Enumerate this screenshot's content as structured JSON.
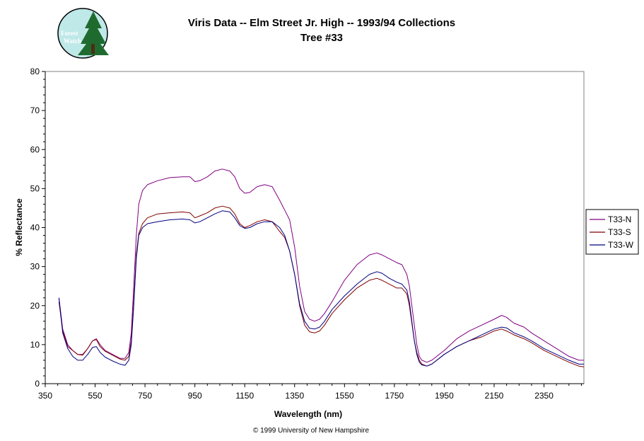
{
  "logo": {
    "line1": "Forest",
    "line2": "Watch"
  },
  "credit": "© 1999 University of New Hampshire",
  "colors": {
    "T33-N": "#800080",
    "T33-S": "#800000",
    "T33-W": "#000080",
    "axis": "#000000",
    "logo_bg": "#bfe8e8",
    "logo_tree": "#1f6b2f"
  },
  "chart_data": {
    "type": "line",
    "title": "Viris Data -- Elm Street Jr. High -- 1993/94 Collections",
    "subtitle": "Tree #33",
    "xlabel": "Wavelength (nm)",
    "ylabel": "% Reflectance",
    "xlim": [
      350,
      2510
    ],
    "ylim": [
      0,
      80
    ],
    "xticks": [
      350,
      550,
      750,
      950,
      1150,
      1350,
      1550,
      1750,
      1950,
      2150,
      2350
    ],
    "yticks": [
      0,
      10,
      20,
      30,
      40,
      50,
      60,
      70,
      80
    ],
    "grid": false,
    "legend": "right",
    "series": [
      {
        "name": "T33-N",
        "x": [
          405,
          420,
          440,
          460,
          480,
          500,
          520,
          540,
          555,
          570,
          590,
          620,
          650,
          670,
          685,
          695,
          705,
          715,
          725,
          740,
          760,
          800,
          850,
          900,
          930,
          950,
          970,
          1000,
          1030,
          1060,
          1090,
          1110,
          1130,
          1150,
          1170,
          1200,
          1230,
          1260,
          1290,
          1310,
          1330,
          1350,
          1370,
          1390,
          1410,
          1430,
          1450,
          1470,
          1500,
          1550,
          1600,
          1650,
          1680,
          1700,
          1730,
          1760,
          1780,
          1800,
          1810,
          1820,
          1830,
          1840,
          1850,
          1860,
          1880,
          1900,
          1950,
          2000,
          2050,
          2100,
          2150,
          2180,
          2200,
          2230,
          2270,
          2300,
          2350,
          2400,
          2450,
          2490,
          2510
        ],
        "y": [
          22,
          14,
          10,
          8.5,
          7.5,
          7.5,
          9,
          11,
          11.5,
          10,
          8.5,
          7.5,
          6.5,
          6.5,
          8,
          13,
          25,
          38,
          46,
          49.5,
          51,
          52,
          52.8,
          53,
          53,
          51.8,
          52,
          53,
          54.5,
          55,
          54.5,
          53,
          50,
          48.8,
          49,
          50.5,
          51,
          50.5,
          47,
          44.5,
          42,
          35,
          25,
          18.5,
          16.5,
          16,
          16.5,
          18,
          21,
          26.5,
          30.5,
          33,
          33.5,
          33,
          32,
          31,
          30.5,
          28,
          25,
          20,
          15,
          10,
          7,
          6,
          5.5,
          6,
          8.5,
          11.5,
          13.5,
          15,
          16.5,
          17.5,
          17,
          15.5,
          14.5,
          13,
          11,
          9,
          7,
          6,
          6
        ]
      },
      {
        "name": "T33-S",
        "x": [
          405,
          420,
          440,
          460,
          480,
          500,
          520,
          540,
          555,
          570,
          590,
          620,
          650,
          670,
          685,
          695,
          705,
          715,
          725,
          740,
          760,
          800,
          850,
          900,
          930,
          950,
          970,
          1000,
          1030,
          1060,
          1090,
          1110,
          1130,
          1150,
          1170,
          1200,
          1230,
          1260,
          1290,
          1310,
          1330,
          1350,
          1370,
          1390,
          1410,
          1430,
          1450,
          1470,
          1500,
          1550,
          1600,
          1650,
          1680,
          1700,
          1730,
          1760,
          1780,
          1800,
          1810,
          1820,
          1830,
          1840,
          1850,
          1860,
          1880,
          1900,
          1950,
          2000,
          2050,
          2100,
          2150,
          2180,
          2200,
          2230,
          2270,
          2300,
          2350,
          2400,
          2450,
          2490,
          2510
        ],
        "y": [
          21,
          13.5,
          9.5,
          8.5,
          7.5,
          7.3,
          9,
          11,
          11.3,
          9.5,
          8.3,
          7.3,
          6.3,
          6,
          7,
          11,
          21,
          33,
          38.5,
          41,
          42.5,
          43.5,
          43.8,
          44,
          43.8,
          42.5,
          43,
          43.8,
          45,
          45.5,
          45,
          43.5,
          41,
          40,
          40.5,
          41.5,
          42,
          41.5,
          39,
          37.5,
          34,
          28,
          20,
          15,
          13.3,
          13,
          13.5,
          15,
          18,
          21.5,
          24.5,
          26.5,
          27,
          26.5,
          25.5,
          24.5,
          24.5,
          23,
          20,
          15.5,
          11,
          8,
          6,
          5,
          4.5,
          5,
          7.5,
          9.5,
          11,
          12,
          13.5,
          14,
          13.5,
          12.5,
          11.5,
          10.5,
          8.5,
          7,
          5.5,
          4.5,
          4.3
        ]
      },
      {
        "name": "T33-W",
        "x": [
          405,
          420,
          440,
          460,
          480,
          500,
          520,
          540,
          555,
          570,
          590,
          620,
          650,
          670,
          685,
          695,
          705,
          715,
          725,
          740,
          760,
          800,
          850,
          900,
          930,
          950,
          970,
          1000,
          1030,
          1060,
          1090,
          1110,
          1130,
          1150,
          1170,
          1200,
          1230,
          1260,
          1290,
          1310,
          1330,
          1350,
          1370,
          1390,
          1410,
          1430,
          1450,
          1470,
          1500,
          1550,
          1600,
          1650,
          1680,
          1700,
          1730,
          1760,
          1780,
          1800,
          1810,
          1820,
          1830,
          1840,
          1850,
          1860,
          1880,
          1900,
          1950,
          2000,
          2050,
          2100,
          2150,
          2180,
          2200,
          2230,
          2270,
          2300,
          2350,
          2400,
          2450,
          2490,
          2510
        ],
        "y": [
          22,
          13,
          9,
          7,
          6,
          6,
          7.5,
          9.3,
          9.5,
          8,
          6.8,
          5.8,
          5,
          4.7,
          6,
          10,
          20,
          32,
          38,
          40,
          41,
          41.5,
          42,
          42.2,
          42,
          41.2,
          41.5,
          42.5,
          43.5,
          44.3,
          44,
          42.5,
          40.5,
          39.8,
          40,
          41,
          41.5,
          41.5,
          40,
          38,
          34,
          28,
          20.5,
          16,
          14.2,
          14,
          14.5,
          16,
          19,
          22.5,
          25.5,
          28,
          28.7,
          28.3,
          27,
          26,
          25.5,
          24,
          21,
          16,
          11,
          7.5,
          5.5,
          4.8,
          4.5,
          5,
          7.5,
          9.5,
          11,
          12.5,
          14,
          14.5,
          14.3,
          13,
          12,
          11,
          9,
          7.5,
          6,
          5,
          5
        ]
      }
    ]
  }
}
